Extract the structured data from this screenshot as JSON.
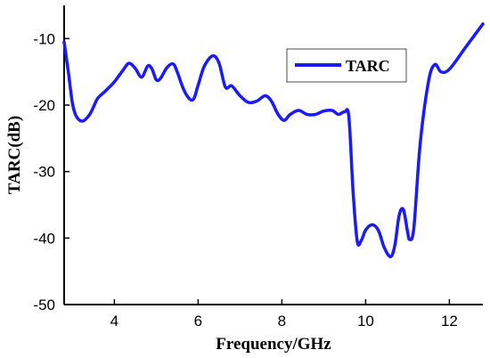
{
  "chart_data": {
    "type": "line",
    "title": "",
    "xlabel": "Frequency/GHz",
    "ylabel": "TARC(dB)",
    "xlim": [
      2.8,
      12.8
    ],
    "ylim": [
      -50,
      -5
    ],
    "xticks": [
      4,
      6,
      8,
      10,
      12
    ],
    "yticks": [
      -10,
      -20,
      -30,
      -40,
      -50
    ],
    "xtick_labels": [
      "4",
      "6",
      "8",
      "10",
      "12"
    ],
    "ytick_labels": [
      "-10",
      "-20",
      "-30",
      "-40",
      "-50"
    ],
    "grid": false,
    "legend_position": "top-right",
    "series": [
      {
        "name": "TARC",
        "color": "#1a1aff",
        "points": [
          [
            2.8,
            -10.5
          ],
          [
            2.9,
            -15.0
          ],
          [
            3.0,
            -19.8
          ],
          [
            3.1,
            -21.8
          ],
          [
            3.25,
            -22.4
          ],
          [
            3.4,
            -21.5
          ],
          [
            3.5,
            -20.3
          ],
          [
            3.6,
            -19.0
          ],
          [
            3.8,
            -17.8
          ],
          [
            4.0,
            -16.5
          ],
          [
            4.2,
            -14.8
          ],
          [
            4.35,
            -13.7
          ],
          [
            4.5,
            -14.5
          ],
          [
            4.65,
            -15.8
          ],
          [
            4.8,
            -14.1
          ],
          [
            4.9,
            -14.6
          ],
          [
            5.0,
            -16.2
          ],
          [
            5.1,
            -16.0
          ],
          [
            5.25,
            -14.4
          ],
          [
            5.4,
            -13.8
          ],
          [
            5.5,
            -15.0
          ],
          [
            5.65,
            -17.6
          ],
          [
            5.8,
            -19.1
          ],
          [
            5.9,
            -19.0
          ],
          [
            6.0,
            -17.0
          ],
          [
            6.15,
            -14.1
          ],
          [
            6.35,
            -12.6
          ],
          [
            6.5,
            -13.7
          ],
          [
            6.65,
            -17.3
          ],
          [
            6.8,
            -17.1
          ],
          [
            7.0,
            -18.6
          ],
          [
            7.2,
            -19.6
          ],
          [
            7.4,
            -19.4
          ],
          [
            7.6,
            -18.6
          ],
          [
            7.75,
            -19.4
          ],
          [
            7.9,
            -21.3
          ],
          [
            8.05,
            -22.3
          ],
          [
            8.2,
            -21.4
          ],
          [
            8.4,
            -20.8
          ],
          [
            8.6,
            -21.4
          ],
          [
            8.8,
            -21.4
          ],
          [
            9.0,
            -20.9
          ],
          [
            9.2,
            -20.8
          ],
          [
            9.35,
            -21.4
          ],
          [
            9.5,
            -21.0
          ],
          [
            9.6,
            -21.8
          ],
          [
            9.7,
            -33.0
          ],
          [
            9.8,
            -40.5
          ],
          [
            9.9,
            -40.3
          ],
          [
            10.0,
            -38.8
          ],
          [
            10.15,
            -38.0
          ],
          [
            10.3,
            -38.8
          ],
          [
            10.45,
            -41.5
          ],
          [
            10.6,
            -42.8
          ],
          [
            10.7,
            -41.0
          ],
          [
            10.8,
            -36.6
          ],
          [
            10.9,
            -35.7
          ],
          [
            11.0,
            -39.0
          ],
          [
            11.05,
            -40.2
          ],
          [
            11.15,
            -38.5
          ],
          [
            11.3,
            -26.0
          ],
          [
            11.5,
            -16.5
          ],
          [
            11.65,
            -13.9
          ],
          [
            11.8,
            -15.0
          ],
          [
            12.0,
            -14.6
          ],
          [
            12.4,
            -11.2
          ],
          [
            12.8,
            -7.8
          ]
        ]
      }
    ]
  }
}
